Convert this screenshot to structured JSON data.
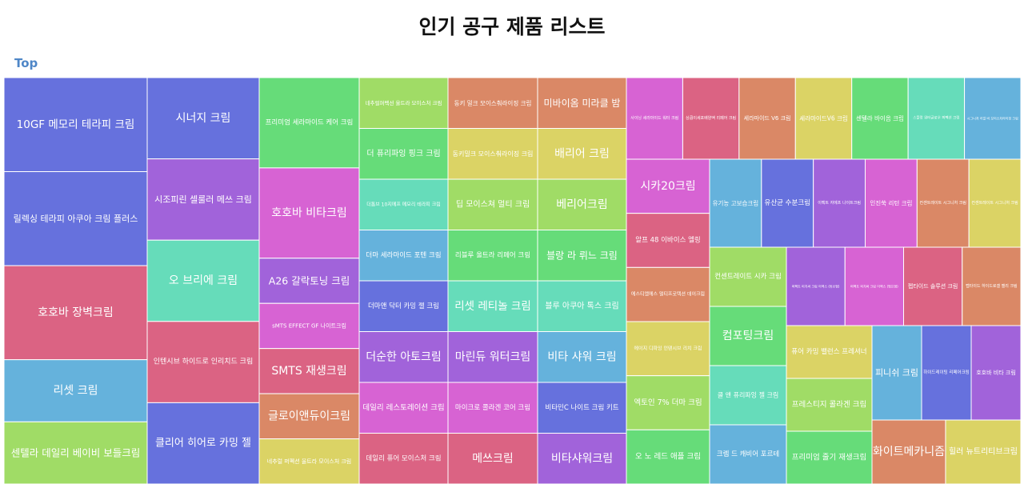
{
  "chart_data": {
    "type": "treemap",
    "title": "인기 공구 제품 리스트",
    "breadcrumb": "Top",
    "palette": {
      "blue": "#6671dd",
      "purple": "#a163da",
      "magenta": "#d763d3",
      "rose": "#db6383",
      "orange": "#da8866",
      "yellow": "#dbd365",
      "lime": "#a0dc66",
      "green": "#66dc79",
      "teal": "#66dcba",
      "sky": "#65b2dc"
    },
    "columns": [
      {
        "width": 179,
        "items": [
          {
            "label": "10GF 메모리 테라피 크림",
            "value": 115,
            "color": "blue"
          },
          {
            "label": "릴렉싱 테라피 아쿠아 크림 플러스",
            "value": 115,
            "color": "blue"
          },
          {
            "label": "호호바 장벽크림",
            "value": 115,
            "color": "rose"
          },
          {
            "label": "리셋 크림",
            "value": 76,
            "color": "sky"
          },
          {
            "label": "센텔라 데일리 베이비 보들크림",
            "value": 76,
            "color": "lime"
          }
        ]
      },
      {
        "width": 140,
        "items": [
          {
            "label": "시너지 크림",
            "value": 100,
            "color": "blue"
          },
          {
            "label": "시조피린 셀룰러 메쓰 크림",
            "value": 100,
            "color": "purple"
          },
          {
            "label": "오 브리에 크림",
            "value": 100,
            "color": "teal"
          },
          {
            "label": "인텐시브 하이드로 인리치드 크림",
            "value": 100,
            "color": "rose"
          },
          {
            "label": "클리어 히어로 카밍 젤",
            "value": 100,
            "color": "blue"
          }
        ]
      },
      {
        "width": 125,
        "items": [
          {
            "label": "프리미엄 세라마이드 케어 크림",
            "value": 112,
            "color": "green"
          },
          {
            "label": "호호바 비타크림",
            "value": 112,
            "color": "magenta"
          },
          {
            "label": "A26 갈락토닝 크림",
            "value": 56,
            "color": "purple"
          },
          {
            "label": "sMTS EFFECT GF 나이트크림",
            "value": 56,
            "color": "magenta"
          },
          {
            "label": "SMTS 재생크림",
            "value": 56,
            "color": "rose"
          },
          {
            "label": "글로이앤듀이크림",
            "value": 56,
            "color": "orange"
          },
          {
            "label": "네추럴 퍼펙션 울트라 모이스처 크림",
            "value": 56,
            "color": "yellow"
          }
        ]
      },
      {
        "width": 111,
        "items": [
          {
            "label": "네추럴퍼펙션 울트라 모이스처 크림",
            "value": 63,
            "color": "lime"
          },
          {
            "label": "더 퓨리파잉 핑크 크림",
            "value": 63,
            "color": "green"
          },
          {
            "label": "더톰브 10지메프 메모리 테라피 크림",
            "value": 63,
            "color": "teal"
          },
          {
            "label": "더마 세라마이드 포텐 크림",
            "value": 63,
            "color": "sky"
          },
          {
            "label": "더마앤 닥터 카밍 젤 크림",
            "value": 63,
            "color": "blue"
          },
          {
            "label": "더순한 아토크림",
            "value": 63,
            "color": "purple"
          },
          {
            "label": "데일리 레스토레이션 크림",
            "value": 63,
            "color": "magenta"
          },
          {
            "label": "데일리 퓨어 모이스처 크림",
            "value": 63,
            "color": "rose"
          }
        ]
      },
      {
        "width": 112,
        "items": [
          {
            "label": "동키 밀크 모이스춰라이징 크림",
            "value": 63,
            "color": "orange"
          },
          {
            "label": "동키밀크 모이스춰라이징 크림",
            "value": 63,
            "color": "yellow"
          },
          {
            "label": "딥 모이스쳐 멀티 크림",
            "value": 63,
            "color": "lime"
          },
          {
            "label": "리블루 울트라 리페어 크림",
            "value": 63,
            "color": "green"
          },
          {
            "label": "리셋 레티놀 크림",
            "value": 63,
            "color": "teal"
          },
          {
            "label": "마린듀 워터크림",
            "value": 63,
            "color": "purple"
          },
          {
            "label": "마이크로 콜라겐 코어 크림",
            "value": 63,
            "color": "magenta"
          },
          {
            "label": "메쓰크림",
            "value": 63,
            "color": "rose"
          }
        ]
      },
      {
        "width": 111,
        "items": [
          {
            "label": "미바이옴 미라클 밤",
            "value": 63,
            "color": "orange"
          },
          {
            "label": "배리어 크림",
            "value": 63,
            "color": "yellow"
          },
          {
            "label": "베리어크림",
            "value": 63,
            "color": "lime"
          },
          {
            "label": "블랑 라 뤼느 크림",
            "value": 63,
            "color": "green"
          },
          {
            "label": "블루 아쿠아 톡스 크림",
            "value": 63,
            "color": "teal"
          },
          {
            "label": "비타 샤워 크림",
            "value": 63,
            "color": "sky"
          },
          {
            "label": "비타민C 나이트 크림 키트",
            "value": 63,
            "color": "blue"
          },
          {
            "label": "비타샤워크림",
            "value": 63,
            "color": "purple"
          }
        ]
      },
      {
        "width": 493,
        "blocks": [
          {
            "height": 102,
            "items": [
              {
                "label": "사이닝 세라마이드 워터 크림",
                "value": 69,
                "color": "magenta"
              },
              {
                "label": "상큼이세포배양액 리페어 크림",
                "value": 69,
                "color": "rose"
              },
              {
                "label": "세라마이드 V6 크림",
                "value": 69,
                "color": "orange"
              },
              {
                "label": "세라마이드V6 크림",
                "value": 69,
                "color": "yellow"
              },
              {
                "label": "센텔라 바이옴 크림",
                "value": 69,
                "color": "green"
              },
              {
                "label": "스플랑 워터글로우 퍼펙션 크림",
                "value": 69,
                "color": "teal"
              },
              {
                "label": "시그니처 리얼 비 모이스처라이징 크림",
                "value": 69,
                "color": "sky"
              }
            ]
          },
          {
            "columns": [
              {
                "width": 104,
                "items": [
                  {
                    "label": "시카20크림",
                    "value": 67,
                    "color": "magenta"
                  },
                  {
                    "label": "알프 48 이바이스 엘링",
                    "value": 67,
                    "color": "rose"
                  },
                  {
                    "label": "에스티엠에스 멀티프로텍션 데이크림",
                    "value": 67,
                    "color": "orange"
                  },
                  {
                    "label": "에이지 디파잉 인텐시브 리치 크림",
                    "value": 67,
                    "color": "yellow"
                  },
                  {
                    "label": "엑토인 7% 더마 크림",
                    "value": 67,
                    "color": "lime"
                  },
                  {
                    "label": "오 노 레드 애플 크림",
                    "value": 67,
                    "color": "green"
                  }
                ]
              },
              {
                "width": 389,
                "blocks": [
                  {
                    "height": 110,
                    "items": [
                      {
                        "label": "유기농 고보습크림",
                        "value": 64,
                        "color": "sky"
                      },
                      {
                        "label": "유산균 수분크림",
                        "value": 64,
                        "color": "blue"
                      },
                      {
                        "label": "이펙트 자에프 나이트크림",
                        "value": 64,
                        "color": "purple"
                      },
                      {
                        "label": "인진쑥 리턴 크림",
                        "value": 64,
                        "color": "magenta"
                      },
                      {
                        "label": "컨센트레이트 시그니처 크림",
                        "value": 64,
                        "color": "orange"
                      },
                      {
                        "label": "컨센트레이트 시그니처 크림",
                        "value": 64,
                        "color": "yellow"
                      }
                    ]
                  },
                  {
                    "columns": [
                      {
                        "width": 96,
                        "items": [
                          {
                            "label": "컨센트레이트 시카 크림",
                            "value": 73,
                            "color": "lime"
                          },
                          {
                            "label": "컴포팅크림",
                            "value": 73,
                            "color": "green"
                          },
                          {
                            "label": "쿨 앤 퓨리파잉 젤 크림",
                            "value": 73,
                            "color": "teal"
                          },
                          {
                            "label": "크렘 드 캐비어 포르테",
                            "value": 73,
                            "color": "sky"
                          }
                        ]
                      },
                      {
                        "width": 293,
                        "blocks": [
                          {
                            "height": 98,
                            "items": [
                              {
                                "label": "퍼펙트 피치써 크림 이엑스 (튜브형)",
                                "value": 73,
                                "color": "purple"
                              },
                              {
                                "label": "퍼펙트 피치써 크림 이엑스 (펌프형)",
                                "value": 73,
                                "color": "magenta"
                              },
                              {
                                "label": "펩타이드 솔루션 크림",
                                "value": 73,
                                "color": "rose"
                              },
                              {
                                "label": "펩타이드 하이드로겔 젤리 크림",
                                "value": 73,
                                "color": "orange"
                              }
                            ]
                          },
                          {
                            "columns": [
                              {
                                "width": 107,
                                "items": [
                                  {
                                    "label": "퓨어 카밍 밸런스 프레셔너",
                                    "value": 66,
                                    "color": "yellow"
                                  },
                                  {
                                    "label": "프레스티지 콜라겐 크림",
                                    "value": 66,
                                    "color": "lime"
                                  },
                                  {
                                    "label": "프리미엄 줄기 재생크림",
                                    "value": 66,
                                    "color": "green"
                                  }
                                ]
                              },
                              {
                                "width": 186,
                                "blocks": [
                                  {
                                    "height": 118,
                                    "items": [
                                      {
                                        "label": "피니쉬 크림",
                                        "value": 60,
                                        "color": "sky"
                                      },
                                      {
                                        "label": "하이드레이팅 리페어크림",
                                        "value": 60,
                                        "color": "blue"
                                      },
                                      {
                                        "label": "호호바 비타 크림",
                                        "value": 60,
                                        "color": "purple"
                                      }
                                    ]
                                  },
                                  {
                                    "items": [
                                      {
                                        "label": "화이트메카니즘",
                                        "value": 88,
                                        "color": "orange"
                                      },
                                      {
                                        "label": "힐러 뉴트리티브크림",
                                        "value": 90,
                                        "color": "yellow"
                                      }
                                    ]
                                  }
                                ]
                              }
                            ]
                          }
                        ]
                      }
                    ]
                  }
                ]
              }
            ]
          }
        ]
      }
    ]
  }
}
